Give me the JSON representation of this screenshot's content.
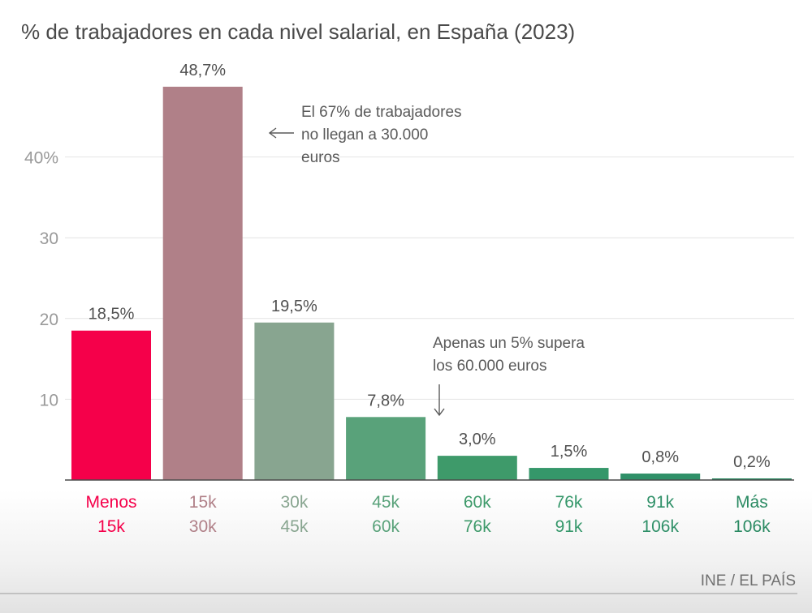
{
  "chart_data": {
    "type": "bar",
    "title": "% de trabajadores en cada nivel salarial, en España (2023)",
    "categories": [
      [
        "Menos",
        "15k"
      ],
      [
        "15k",
        "30k"
      ],
      [
        "30k",
        "45k"
      ],
      [
        "45k",
        "60k"
      ],
      [
        "60k",
        "76k"
      ],
      [
        "76k",
        "91k"
      ],
      [
        "91k",
        "106k"
      ],
      [
        "Más",
        "106k"
      ]
    ],
    "values": [
      18.5,
      48.7,
      19.5,
      7.8,
      3.0,
      1.5,
      0.8,
      0.2
    ],
    "data_labels": [
      "18,5%",
      "48,7%",
      "19,5%",
      "7,8%",
      "3,0%",
      "1,5%",
      "0,8%",
      "0,2%"
    ],
    "colors": [
      "#f5004a",
      "#b08088",
      "#88a590",
      "#59a27a",
      "#3e9a6a",
      "#35976a",
      "#2f9068",
      "#2a8a62"
    ],
    "ylim": [
      0,
      50
    ],
    "yticks": [
      {
        "value": 10,
        "label": "10"
      },
      {
        "value": 20,
        "label": "20"
      },
      {
        "value": 30,
        "label": "30"
      },
      {
        "value": 40,
        "label": "40%"
      }
    ],
    "grid": true,
    "annotations": [
      {
        "lines": [
          "El 67% de trabajadores",
          "no llegan a 30.000",
          "euros"
        ],
        "arrow": "←"
      },
      {
        "lines": [
          "Apenas un 5% supera",
          "los 60.000 euros"
        ],
        "arrow": "↓"
      }
    ],
    "source": "INE / EL PAÍS"
  }
}
